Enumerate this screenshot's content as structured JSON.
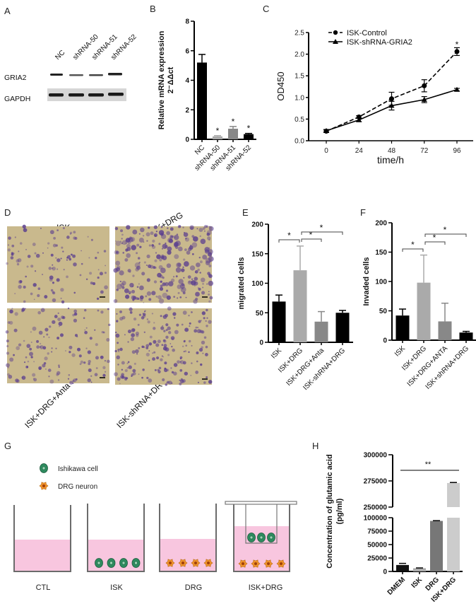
{
  "panels": {
    "A": {
      "label": "A",
      "lanes": [
        "NC",
        "shRNA-50",
        "shRNA-51",
        "shRNA-52"
      ],
      "rows": [
        "GRIA2",
        "GAPDH"
      ]
    },
    "D": {
      "label": "D",
      "images": [
        "ISK",
        "ISK+DRG",
        "ISK+DRG+Anta",
        "ISK-shRNA+DRG"
      ],
      "micrograph_color": "#c9b98d",
      "stain_color": "#5b3f8f"
    },
    "G": {
      "label": "G",
      "legend": [
        {
          "name": "Ishikawa cell",
          "icon": "ishikawa-cell-icon",
          "color": "#2e8b5f"
        },
        {
          "name": "DRG neuron",
          "icon": "drg-neuron-icon",
          "color": "#f0932b"
        }
      ],
      "wells": [
        "CTL",
        "ISK",
        "DRG",
        "ISK+DRG"
      ],
      "medium_color": "#f8c6df"
    }
  },
  "chart_data": [
    {
      "panel": "B",
      "type": "bar",
      "ylabel": "Relative mRNA expression",
      "ylabel2": "2⁻ΔΔct",
      "categories": [
        "NC",
        "shRNA-50",
        "shRNA-51",
        "shRNA-52"
      ],
      "values": [
        5.2,
        0.2,
        0.72,
        0.35
      ],
      "errors": [
        0.55,
        0.05,
        0.15,
        0.05
      ],
      "colors": [
        "#000000",
        "#aaaaaa",
        "#888888",
        "#000000"
      ],
      "significance": [
        "",
        "*",
        "*",
        "*"
      ],
      "ylim": [
        0,
        8
      ],
      "yticks": [
        "0",
        "2",
        "4",
        "6",
        "8"
      ]
    },
    {
      "panel": "C",
      "type": "line",
      "xlabel": "time/h",
      "ylabel": "OD450",
      "x": [
        0,
        24,
        48,
        72,
        96
      ],
      "series": [
        {
          "name": "ISK-Control",
          "values": [
            0.22,
            0.55,
            0.97,
            1.27,
            2.06
          ],
          "errors": [
            0.03,
            0.03,
            0.15,
            0.14,
            0.09
          ],
          "marker": "circle",
          "dash": "dashed"
        },
        {
          "name": "ISK-shRNA-GRIA2",
          "values": [
            0.23,
            0.48,
            0.81,
            0.95,
            1.18
          ],
          "errors": [
            0.03,
            0.04,
            0.1,
            0.07,
            0.03
          ],
          "marker": "triangle",
          "dash": "solid"
        }
      ],
      "annotation": "*",
      "xlim": [
        0,
        96
      ],
      "ylim": [
        0,
        2.5
      ],
      "xticks": [
        "0",
        "24",
        "48",
        "72",
        "96"
      ],
      "yticks": [
        "0.0",
        "0.5",
        "1.0",
        "1.5",
        "2.0",
        "2.5"
      ]
    },
    {
      "panel": "E",
      "type": "bar",
      "ylabel": "migrated cells",
      "categories": [
        "ISK",
        "ISK+DRG",
        "ISK+DRG+Anta",
        "ISK-shRNA+DRG"
      ],
      "values": [
        69,
        122,
        35,
        50
      ],
      "errors": [
        11,
        41,
        17,
        4
      ],
      "colors": [
        "#000000",
        "#aaaaaa",
        "#888888",
        "#000000"
      ],
      "brackets": [
        {
          "from": 0,
          "to": 1,
          "label": "*"
        },
        {
          "from": 1,
          "to": 2,
          "label": "*"
        },
        {
          "from": 1,
          "to": 3,
          "label": "*"
        }
      ],
      "ylim": [
        0,
        200
      ],
      "yticks": [
        "0",
        "50",
        "100",
        "150",
        "200"
      ]
    },
    {
      "panel": "F",
      "type": "bar",
      "ylabel": "Invaded cells",
      "categories": [
        "ISK",
        "ISK+DRG",
        "ISK+DRG+ANTA",
        "ISK+shRNA+DRG"
      ],
      "values": [
        42,
        98,
        32,
        13
      ],
      "errors": [
        11,
        47,
        31,
        2
      ],
      "colors": [
        "#000000",
        "#aaaaaa",
        "#888888",
        "#000000"
      ],
      "brackets": [
        {
          "from": 0,
          "to": 1,
          "label": "*"
        },
        {
          "from": 1,
          "to": 2,
          "label": "*"
        },
        {
          "from": 1,
          "to": 3,
          "label": "*"
        }
      ],
      "ylim": [
        0,
        200
      ],
      "yticks": [
        "0",
        "50",
        "100",
        "150",
        "200"
      ]
    },
    {
      "panel": "H",
      "type": "bar",
      "ylabel": "Concentration of glutamic acid",
      "ylabel2": "(pg/ml)",
      "categories": [
        "DMEM",
        "ISK",
        "DRG",
        "ISK+DRG"
      ],
      "values": [
        12000,
        6000,
        94000,
        273000
      ],
      "errors": [
        3000,
        500,
        500,
        500
      ],
      "colors": [
        "#111111",
        "#aaaaaa",
        "#777777",
        "#cccccc"
      ],
      "annotation": "**",
      "axis_break": [
        100000,
        250000
      ],
      "ylim": [
        0,
        300000
      ],
      "yticks_lower": [
        "0",
        "25000",
        "50000",
        "75000",
        "100000"
      ],
      "yticks_upper": [
        "250000",
        "275000",
        "300000"
      ]
    }
  ]
}
